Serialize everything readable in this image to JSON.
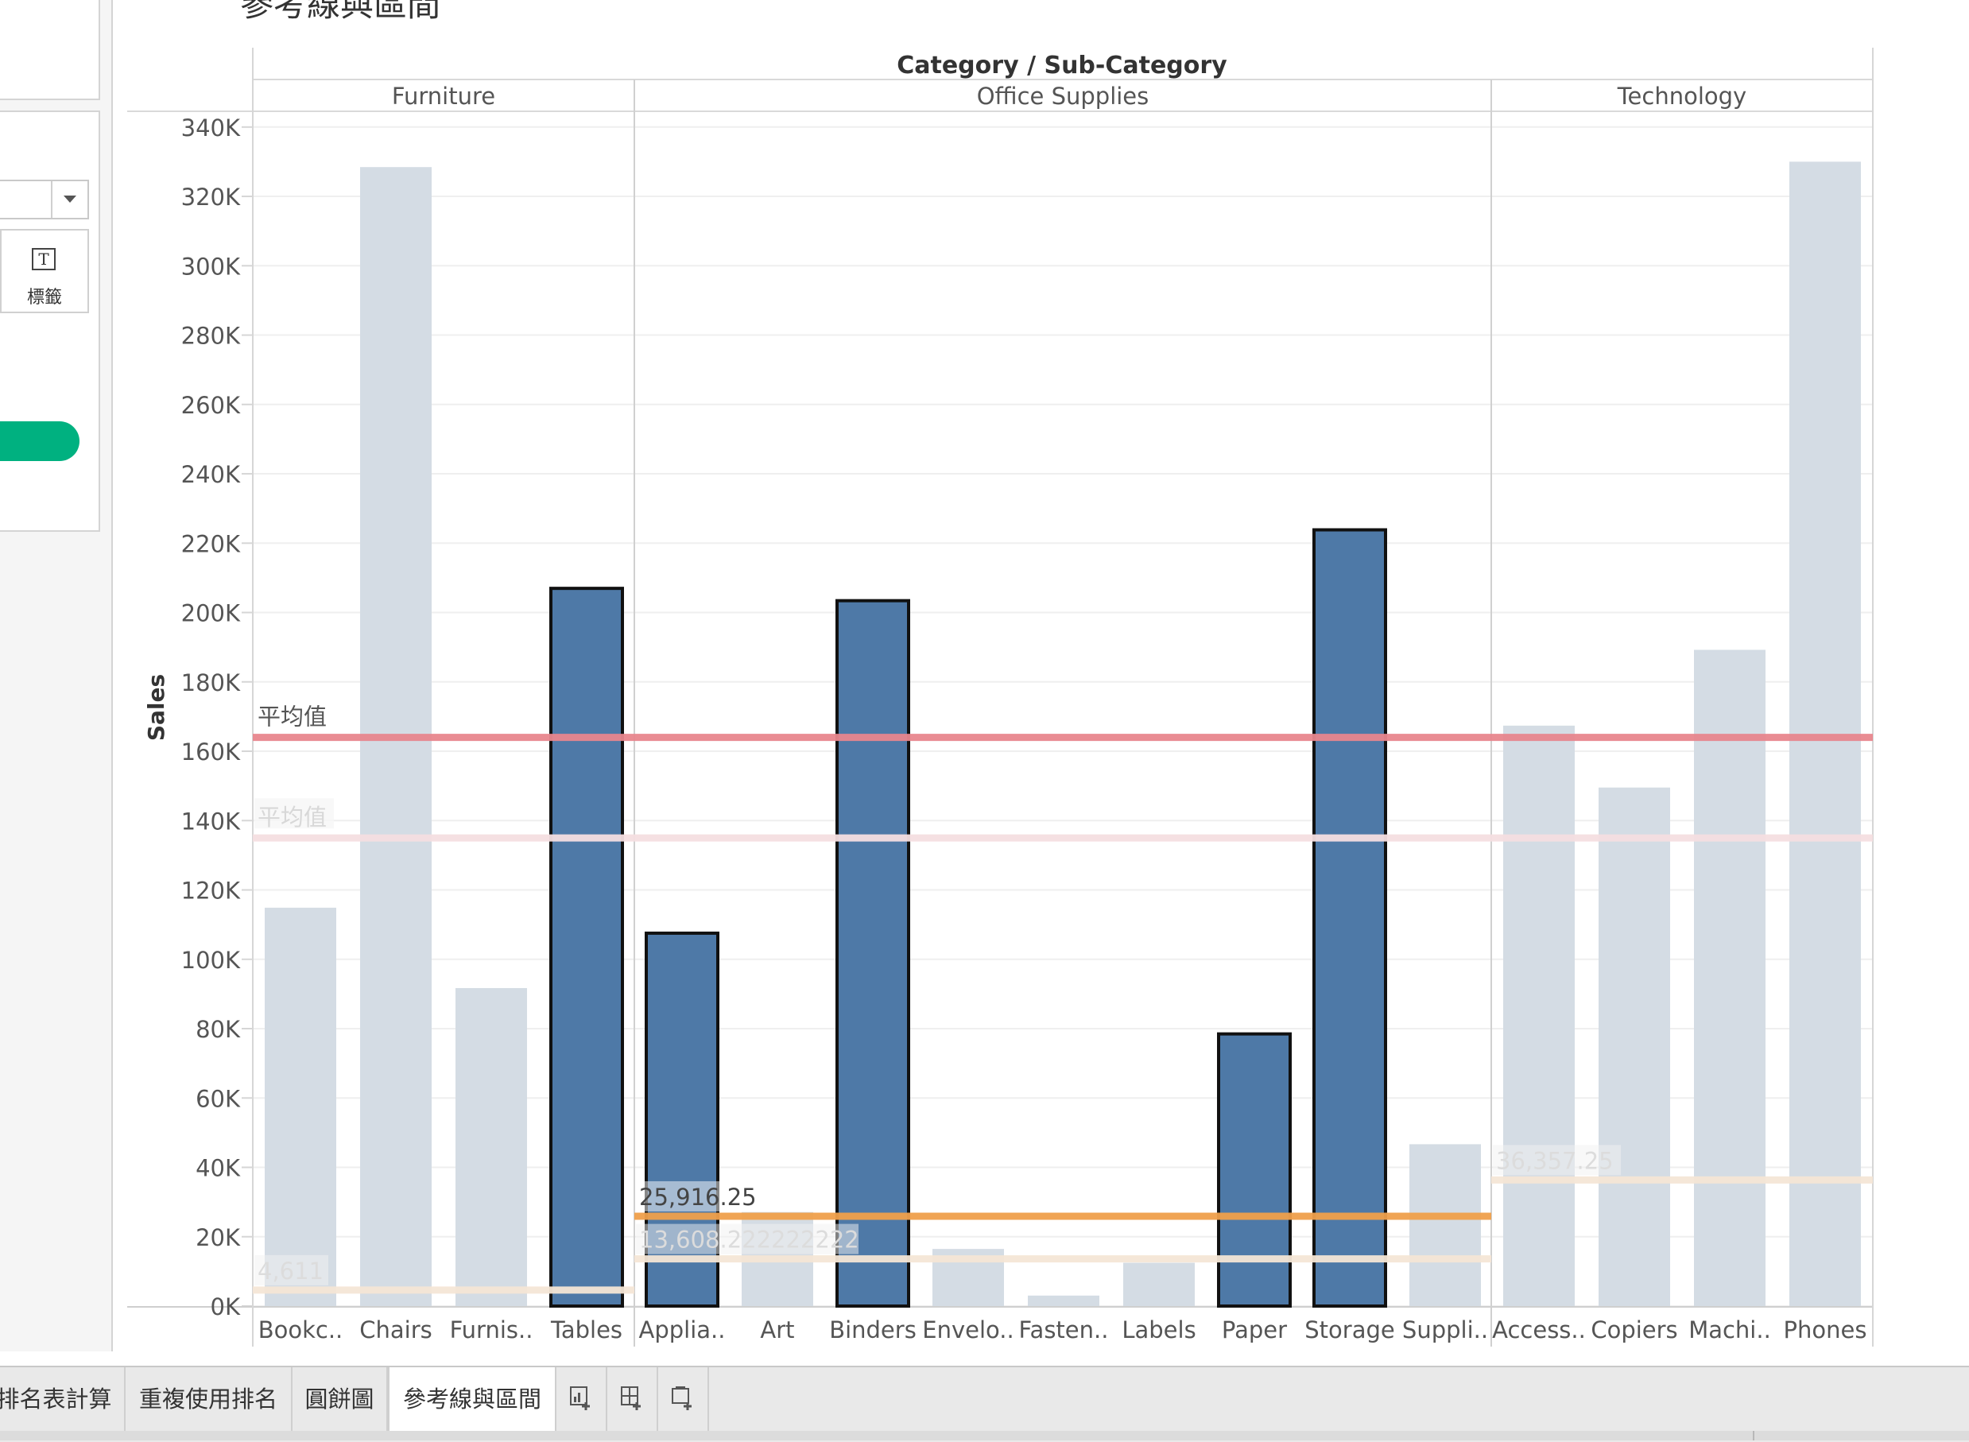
{
  "sheet_title": "參考線與區間",
  "card_label": "標籤",
  "tabs": [
    {
      "label": "排名表計算"
    },
    {
      "label": "重複使用排名"
    },
    {
      "label": "圓餅圖"
    },
    {
      "label": "參考線與區間",
      "active": true
    }
  ],
  "tab_icons": [
    "new-worksheet-icon",
    "new-dashboard-icon",
    "new-story-icon"
  ],
  "colors": {
    "highlight_bar": "#4e79a7",
    "muted_bar": "#d4dce4",
    "avg_line_overall": "#e8868e",
    "avg_line_overall_faded": "#f5dfe1",
    "avg_line_category": "#f0a04b",
    "avg_line_category_faded": "#f5e6d6",
    "accent_green": "#00b180"
  },
  "chart_data": {
    "type": "bar",
    "header_title": "Category / Sub-Category",
    "ylabel": "Sales",
    "ylim": [
      0,
      345000
    ],
    "yticks": [
      0,
      20000,
      40000,
      60000,
      80000,
      100000,
      120000,
      140000,
      160000,
      180000,
      200000,
      220000,
      240000,
      260000,
      280000,
      300000,
      320000,
      340000
    ],
    "ytick_labels": [
      "0K",
      "20K",
      "40K",
      "60K",
      "80K",
      "100K",
      "120K",
      "140K",
      "160K",
      "180K",
      "200K",
      "220K",
      "240K",
      "260K",
      "280K",
      "300K",
      "320K",
      "340K"
    ],
    "grid": true,
    "panes": [
      {
        "category": "Furniture",
        "bars": [
          {
            "label": "Bookc..",
            "value": 114880,
            "highlighted": false
          },
          {
            "label": "Chairs",
            "value": 328449,
            "highlighted": false
          },
          {
            "label": "Furnis..",
            "value": 91705,
            "highlighted": false
          },
          {
            "label": "Tables",
            "value": 206966,
            "highlighted": true
          }
        ],
        "category_average": {
          "value": 4611,
          "label": "4,611",
          "highlighted": false
        }
      },
      {
        "category": "Office Supplies",
        "bars": [
          {
            "label": "Applia..",
            "value": 107532,
            "highlighted": true
          },
          {
            "label": "Art",
            "value": 27119,
            "highlighted": false
          },
          {
            "label": "Binders",
            "value": 203413,
            "highlighted": true
          },
          {
            "label": "Envelo..",
            "value": 16476,
            "highlighted": false
          },
          {
            "label": "Fasten..",
            "value": 3024,
            "highlighted": false
          },
          {
            "label": "Labels",
            "value": 12486,
            "highlighted": false
          },
          {
            "label": "Paper",
            "value": 78479,
            "highlighted": true
          },
          {
            "label": "Storage",
            "value": 223844,
            "highlighted": true
          },
          {
            "label": "Suppli..",
            "value": 46674,
            "highlighted": false
          }
        ],
        "category_average": {
          "value": 25916.25,
          "label": "25,916.25",
          "highlighted": true
        },
        "category_average_2": {
          "value": 13608.222222222,
          "label": "13,608.222222222",
          "highlighted": false
        }
      },
      {
        "category": "Technology",
        "bars": [
          {
            "label": "Access..",
            "value": 167380,
            "highlighted": false
          },
          {
            "label": "Copiers",
            "value": 149528,
            "highlighted": false
          },
          {
            "label": "Machi..",
            "value": 189239,
            "highlighted": false
          },
          {
            "label": "Phones",
            "value": 330007,
            "highlighted": false
          }
        ],
        "category_average": {
          "value": 36357.25,
          "label": "36,357.25",
          "highlighted": false
        }
      }
    ],
    "reference_lines": [
      {
        "label": "平均值",
        "value": 164000,
        "highlighted": true
      },
      {
        "label": "平均值",
        "value": 135000,
        "highlighted": false
      }
    ]
  }
}
